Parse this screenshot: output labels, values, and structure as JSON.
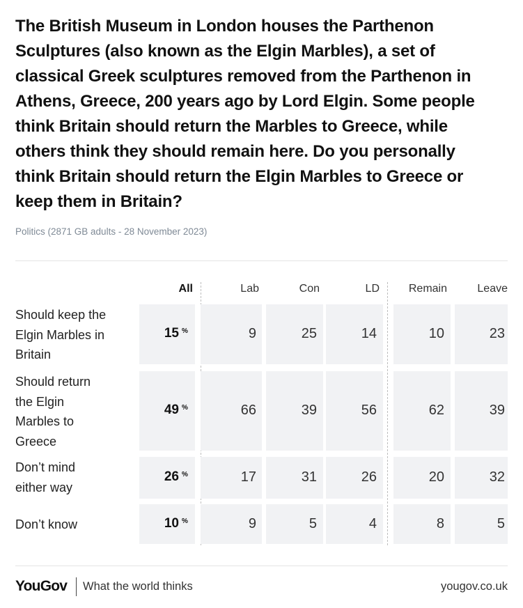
{
  "title": "The British Museum in London houses the Parthenon Sculptures (also known as the Elgin Marbles), a set of classical Greek sculptures removed from the Parthenon in Athens, Greece, 200 years ago by Lord Elgin. Some people think Britain should return the Marbles to Greece, while others think they should remain here. Do you personally think Britain should return the Elgin Marbles to Greece or keep them in Britain?",
  "title_lines": [
    "The British Museum in London houses the Parthenon",
    "Sculptures (also known as the Elgin Marbles), a set of",
    "classical Greek sculptures removed from the Parthenon in",
    "Athens, Greece, 200 years ago by Lord Elgin. Some people",
    "think Britain should return the Marbles to Greece, while",
    "others think they should remain here. Do you personally",
    "think Britain should return the Elgin Marbles to Greece or",
    "keep them in Britain?"
  ],
  "subtitle": "Politics (2871 GB adults - 28 November 2023)",
  "footer": {
    "logo": "YouGov",
    "tagline": "What the world thinks",
    "url": "yougov.co.uk"
  },
  "chart_data": {
    "type": "table",
    "columns": [
      "All",
      "Lab",
      "Con",
      "LD",
      "Remain",
      "Leave"
    ],
    "percent_suffix": "%",
    "rows": [
      {
        "label": "Should keep the Elgin Marbles in Britain",
        "label_lines": [
          "Should keep the",
          "Elgin Marbles in",
          "Britain"
        ],
        "values": [
          15,
          9,
          25,
          14,
          10,
          23
        ]
      },
      {
        "label": "Should return the Elgin Marbles to Greece",
        "label_lines": [
          "Should return",
          "the Elgin",
          "Marbles to",
          "Greece"
        ],
        "values": [
          49,
          66,
          39,
          56,
          62,
          39
        ]
      },
      {
        "label": "Don’t mind either way",
        "label_lines": [
          "Don’t mind",
          "either way"
        ],
        "values": [
          26,
          17,
          31,
          26,
          20,
          32
        ]
      },
      {
        "label": "Don’t know",
        "label_lines": [
          "Don’t know"
        ],
        "values": [
          10,
          9,
          5,
          4,
          8,
          5
        ]
      }
    ]
  }
}
